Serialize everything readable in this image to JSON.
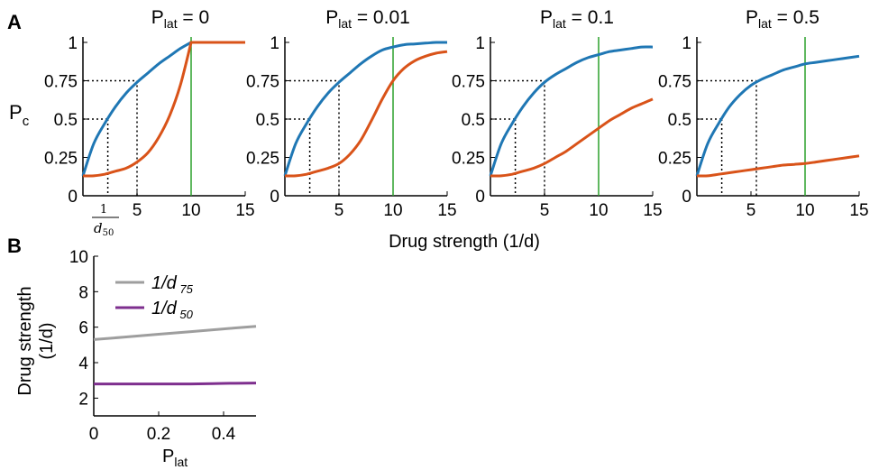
{
  "figure": {
    "panel_a_label": "A",
    "panel_b_label": "B",
    "shared_xlabel": "Drug strength (1/d)",
    "pc_label_main": "P",
    "pc_label_sub": "c",
    "lat_main": "P",
    "lat_sub": "lat",
    "d50_tick_num": "1",
    "d50_tick_den": "d",
    "d50_tick_den_sub": "50"
  },
  "colors": {
    "blue": "#1f77b4",
    "orange": "#d95319",
    "green": "#2ca02c",
    "gray": "#9e9e9e",
    "purple": "#7e2f8e"
  },
  "chart_data": [
    {
      "type": "line",
      "panel": "A",
      "title": "P_lat = 0",
      "title_value": "= 0",
      "xlim": [
        0,
        15
      ],
      "ylim": [
        0,
        1
      ],
      "xticks": [
        5,
        10,
        15
      ],
      "xtick_labels": [
        "5",
        "10",
        "15"
      ],
      "yticks": [
        0,
        0.25,
        0.5,
        0.75,
        1
      ],
      "ytick_labels": [
        "0",
        "0.25",
        "0.5",
        "0.75",
        "1"
      ],
      "vline_x": 10,
      "dotted_guides": [
        {
          "x": 2.3,
          "y": 0.5
        },
        {
          "x": 5.0,
          "y": 0.75
        }
      ],
      "series": [
        {
          "color": "blue",
          "x": [
            0,
            1,
            2,
            3,
            4,
            5,
            6,
            7,
            8,
            9,
            10
          ],
          "y": [
            0.13,
            0.34,
            0.47,
            0.58,
            0.67,
            0.74,
            0.8,
            0.86,
            0.91,
            0.96,
            1.0
          ]
        },
        {
          "color": "orange",
          "x": [
            0,
            1,
            2,
            3,
            4,
            5,
            6,
            7,
            8,
            9,
            10,
            11,
            12,
            13,
            14,
            15
          ],
          "y": [
            0.13,
            0.13,
            0.14,
            0.16,
            0.18,
            0.22,
            0.28,
            0.38,
            0.52,
            0.72,
            1.0,
            1.0,
            1.0,
            1.0,
            1.0,
            1.0
          ]
        }
      ]
    },
    {
      "type": "line",
      "panel": "A",
      "title": "P_lat = 0.01",
      "title_value": "= 0.01",
      "xlim": [
        0,
        15
      ],
      "ylim": [
        0,
        1
      ],
      "xticks": [
        5,
        10,
        15
      ],
      "xtick_labels": [
        "5",
        "10",
        "15"
      ],
      "yticks": [
        0,
        0.25,
        0.5,
        0.75,
        1
      ],
      "ytick_labels": [
        "0",
        "0.25",
        "0.5",
        "0.75",
        "1"
      ],
      "vline_x": 10,
      "dotted_guides": [
        {
          "x": 2.3,
          "y": 0.5
        },
        {
          "x": 5.0,
          "y": 0.75
        }
      ],
      "series": [
        {
          "color": "blue",
          "x": [
            0,
            1,
            2,
            3,
            4,
            5,
            6,
            7,
            8,
            9,
            10,
            11,
            12,
            13,
            14,
            15
          ],
          "y": [
            0.13,
            0.34,
            0.47,
            0.58,
            0.67,
            0.74,
            0.8,
            0.86,
            0.91,
            0.95,
            0.97,
            0.985,
            0.99,
            0.995,
            1.0,
            1.0
          ]
        },
        {
          "color": "orange",
          "x": [
            0,
            1,
            2,
            3,
            4,
            5,
            6,
            7,
            8,
            9,
            10,
            11,
            12,
            13,
            14,
            15
          ],
          "y": [
            0.13,
            0.13,
            0.14,
            0.16,
            0.18,
            0.21,
            0.27,
            0.36,
            0.49,
            0.63,
            0.75,
            0.83,
            0.88,
            0.91,
            0.93,
            0.94
          ]
        }
      ]
    },
    {
      "type": "line",
      "panel": "A",
      "title": "P_lat = 0.1",
      "title_value": "= 0.1",
      "xlim": [
        0,
        15
      ],
      "ylim": [
        0,
        1
      ],
      "xticks": [
        5,
        10,
        15
      ],
      "xtick_labels": [
        "5",
        "10",
        "15"
      ],
      "yticks": [
        0,
        0.25,
        0.5,
        0.75,
        1
      ],
      "ytick_labels": [
        "0",
        "0.25",
        "0.5",
        "0.75",
        "1"
      ],
      "vline_x": 10,
      "dotted_guides": [
        {
          "x": 2.3,
          "y": 0.5
        },
        {
          "x": 5.0,
          "y": 0.75
        }
      ],
      "series": [
        {
          "color": "blue",
          "x": [
            0,
            1,
            2,
            3,
            4,
            5,
            6,
            7,
            8,
            9,
            10,
            11,
            12,
            13,
            14,
            15
          ],
          "y": [
            0.13,
            0.34,
            0.47,
            0.58,
            0.67,
            0.74,
            0.79,
            0.83,
            0.87,
            0.9,
            0.92,
            0.94,
            0.95,
            0.96,
            0.97,
            0.97
          ]
        },
        {
          "color": "orange",
          "x": [
            0,
            1,
            2,
            3,
            4,
            5,
            6,
            7,
            8,
            9,
            10,
            11,
            12,
            13,
            14,
            15
          ],
          "y": [
            0.13,
            0.13,
            0.14,
            0.16,
            0.18,
            0.21,
            0.25,
            0.29,
            0.34,
            0.39,
            0.44,
            0.49,
            0.53,
            0.57,
            0.6,
            0.63
          ]
        }
      ]
    },
    {
      "type": "line",
      "panel": "A",
      "title": "P_lat = 0.5",
      "title_value": "= 0.5",
      "xlim": [
        0,
        15
      ],
      "ylim": [
        0,
        1
      ],
      "xticks": [
        5,
        10,
        15
      ],
      "xtick_labels": [
        "5",
        "10",
        "15"
      ],
      "yticks": [
        0,
        0.25,
        0.5,
        0.75,
        1
      ],
      "ytick_labels": [
        "0",
        "0.25",
        "0.5",
        "0.75",
        "1"
      ],
      "vline_x": 10,
      "dotted_guides": [
        {
          "x": 2.3,
          "y": 0.5
        },
        {
          "x": 5.5,
          "y": 0.75
        }
      ],
      "series": [
        {
          "color": "blue",
          "x": [
            0,
            1,
            2,
            3,
            4,
            5,
            6,
            7,
            8,
            9,
            10,
            11,
            12,
            13,
            14,
            15
          ],
          "y": [
            0.13,
            0.34,
            0.47,
            0.58,
            0.66,
            0.72,
            0.76,
            0.79,
            0.82,
            0.84,
            0.86,
            0.87,
            0.88,
            0.89,
            0.9,
            0.91
          ]
        },
        {
          "color": "orange",
          "x": [
            0,
            1,
            2,
            3,
            4,
            5,
            6,
            7,
            8,
            9,
            10,
            11,
            12,
            13,
            14,
            15
          ],
          "y": [
            0.13,
            0.13,
            0.14,
            0.15,
            0.16,
            0.17,
            0.18,
            0.19,
            0.2,
            0.205,
            0.21,
            0.22,
            0.23,
            0.24,
            0.25,
            0.26
          ]
        }
      ]
    },
    {
      "type": "line",
      "panel": "B",
      "title": "",
      "xlabel": "P_lat",
      "ylabel_line1": "Drug strength",
      "ylabel_line2": "(1/d)",
      "xlim": [
        0,
        0.5
      ],
      "ylim": [
        1,
        10
      ],
      "xticks": [
        0,
        0.2,
        0.4
      ],
      "xtick_labels": [
        "0",
        "0.2",
        "0.4"
      ],
      "yticks": [
        2,
        4,
        6,
        8,
        10
      ],
      "ytick_labels": [
        "2",
        "4",
        "6",
        "8",
        "10"
      ],
      "legend_position": "top-left",
      "series": [
        {
          "name": "1/d 75",
          "legend_main": "1/d",
          "legend_sub": "75",
          "color": "gray",
          "x": [
            0,
            0.1,
            0.2,
            0.3,
            0.4,
            0.5
          ],
          "y": [
            5.3,
            5.45,
            5.6,
            5.75,
            5.9,
            6.05
          ]
        },
        {
          "name": "1/d 50",
          "legend_main": "1/d",
          "legend_sub": "50",
          "color": "purple",
          "x": [
            0,
            0.1,
            0.2,
            0.3,
            0.4,
            0.5
          ],
          "y": [
            2.8,
            2.8,
            2.8,
            2.8,
            2.83,
            2.85
          ]
        }
      ]
    }
  ]
}
